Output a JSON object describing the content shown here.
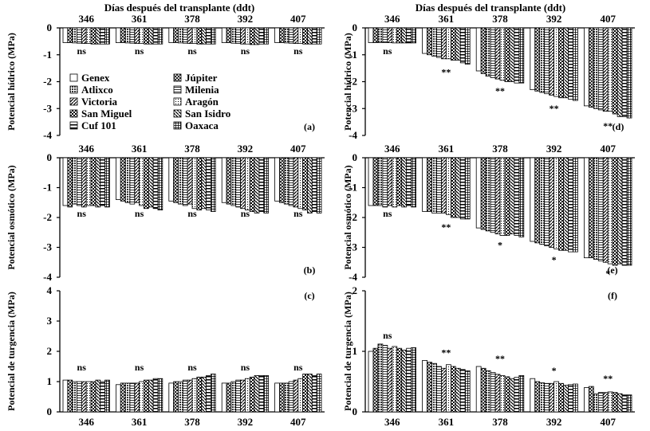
{
  "figure": {
    "header_text": "Días después del transplante (ddt)"
  },
  "chart_data": [
    {
      "panel": "(a)",
      "type": "bar",
      "ylabel": "Potencial hídrico (MPa)",
      "ylim": [
        -4,
        0
      ],
      "yticks": [
        0,
        -1,
        -2,
        -3,
        -4
      ],
      "categories": [
        "346",
        "361",
        "378",
        "392",
        "407"
      ],
      "series_values": [
        [
          -0.55,
          -0.55,
          -0.55,
          -0.55,
          -0.55
        ],
        [
          -0.55,
          -0.55,
          -0.55,
          -0.55,
          -0.55
        ],
        [
          -0.56,
          -0.56,
          -0.56,
          -0.57,
          -0.56
        ],
        [
          -0.57,
          -0.57,
          -0.57,
          -0.58,
          -0.57
        ],
        [
          -0.58,
          -0.58,
          -0.58,
          -0.6,
          -0.58
        ],
        [
          -0.58,
          -0.58,
          -0.58,
          -0.6,
          -0.58
        ],
        [
          -0.6,
          -0.6,
          -0.6,
          -0.62,
          -0.6
        ],
        [
          -0.6,
          -0.6,
          -0.6,
          -0.62,
          -0.6
        ],
        [
          -0.6,
          -0.6,
          -0.6,
          -0.6,
          -0.6
        ],
        [
          -0.6,
          -0.6,
          -0.6,
          -0.6,
          -0.6
        ]
      ],
      "significance": [
        "ns",
        "ns",
        "ns",
        "ns",
        "ns"
      ]
    },
    {
      "panel": "(d)",
      "type": "bar",
      "ylabel": "Potencial hídrico (MPa)",
      "ylim": [
        -4,
        0
      ],
      "yticks": [
        0,
        -1,
        -2,
        -3,
        -4
      ],
      "categories": [
        "346",
        "361",
        "378",
        "392",
        "407"
      ],
      "series_values": [
        [
          -0.55,
          -0.95,
          -1.6,
          -2.3,
          -2.9
        ],
        [
          -0.55,
          -1.0,
          -1.7,
          -2.35,
          -2.95
        ],
        [
          -0.55,
          -1.05,
          -1.8,
          -2.4,
          -3.0
        ],
        [
          -0.55,
          -1.1,
          -1.85,
          -2.45,
          -3.05
        ],
        [
          -0.55,
          -1.15,
          -1.9,
          -2.5,
          -3.1
        ],
        [
          -0.56,
          -1.15,
          -1.95,
          -2.55,
          -3.1
        ],
        [
          -0.56,
          -1.2,
          -2.0,
          -2.6,
          -3.2
        ],
        [
          -0.56,
          -1.2,
          -2.0,
          -2.6,
          -3.3
        ],
        [
          -0.56,
          -1.3,
          -2.05,
          -2.65,
          -3.3
        ],
        [
          -0.56,
          -1.35,
          -2.05,
          -2.7,
          -3.35
        ]
      ],
      "significance": [
        "ns",
        "**",
        "**",
        "**",
        "**"
      ]
    },
    {
      "panel": "(b)",
      "type": "bar",
      "ylabel": "Potencial osmótico (MPa)",
      "ylim": [
        -4,
        0
      ],
      "yticks": [
        0,
        -1,
        -2,
        -3,
        -4
      ],
      "categories": [
        "346",
        "361",
        "378",
        "392",
        "407"
      ],
      "series_values": [
        [
          -1.6,
          -1.4,
          -1.45,
          -1.5,
          -1.45
        ],
        [
          -1.65,
          -1.45,
          -1.5,
          -1.55,
          -1.5
        ],
        [
          -1.55,
          -1.5,
          -1.55,
          -1.6,
          -1.55
        ],
        [
          -1.6,
          -1.55,
          -1.6,
          -1.65,
          -1.6
        ],
        [
          -1.65,
          -1.5,
          -1.55,
          -1.7,
          -1.65
        ],
        [
          -1.6,
          -1.6,
          -1.7,
          -1.75,
          -1.7
        ],
        [
          -1.6,
          -1.7,
          -1.75,
          -1.8,
          -1.75
        ],
        [
          -1.65,
          -1.65,
          -1.7,
          -1.85,
          -1.85
        ],
        [
          -1.6,
          -1.7,
          -1.75,
          -1.8,
          -1.8
        ],
        [
          -1.65,
          -1.75,
          -1.8,
          -1.85,
          -1.85
        ]
      ],
      "significance": [
        "ns",
        "ns",
        "ns",
        "ns",
        "ns"
      ]
    },
    {
      "panel": "(e)",
      "type": "bar",
      "ylabel": "Potencial osmótico (MPa)",
      "ylim": [
        -4,
        0
      ],
      "yticks": [
        0,
        -1,
        -2,
        -3,
        -4
      ],
      "categories": [
        "346",
        "361",
        "378",
        "392",
        "407"
      ],
      "series_values": [
        [
          -1.6,
          -1.8,
          -2.35,
          -2.8,
          -3.35
        ],
        [
          -1.6,
          -1.8,
          -2.4,
          -2.85,
          -3.35
        ],
        [
          -1.6,
          -1.85,
          -2.45,
          -2.9,
          -3.4
        ],
        [
          -1.65,
          -1.85,
          -2.5,
          -2.95,
          -3.45
        ],
        [
          -1.6,
          -1.85,
          -2.55,
          -3.0,
          -3.5
        ],
        [
          -1.65,
          -1.9,
          -2.6,
          -3.05,
          -3.55
        ],
        [
          -1.6,
          -2.0,
          -2.6,
          -3.1,
          -3.6
        ],
        [
          -1.65,
          -2.0,
          -2.55,
          -3.1,
          -3.55
        ],
        [
          -1.6,
          -2.05,
          -2.6,
          -3.15,
          -3.6
        ],
        [
          -1.65,
          -2.05,
          -2.65,
          -3.15,
          -3.6
        ]
      ],
      "significance": [
        "ns",
        "**",
        "*",
        "*",
        "*"
      ]
    },
    {
      "panel": "(c)",
      "type": "bar",
      "ylabel": "Potencial de turgencia (MPa)",
      "ylim": [
        0,
        4
      ],
      "yticks": [
        0,
        1,
        2,
        3,
        4
      ],
      "categories": [
        "346",
        "361",
        "378",
        "392",
        "407"
      ],
      "series_values": [
        [
          1.05,
          0.9,
          0.95,
          0.95,
          0.95
        ],
        [
          1.05,
          0.95,
          1.0,
          0.95,
          0.95
        ],
        [
          1.0,
          0.95,
          1.0,
          1.0,
          0.95
        ],
        [
          1.0,
          0.95,
          1.05,
          1.05,
          1.0
        ],
        [
          1.0,
          0.95,
          1.05,
          1.05,
          1.05
        ],
        [
          1.0,
          1.0,
          1.1,
          1.1,
          1.1
        ],
        [
          1.0,
          1.05,
          1.15,
          1.15,
          1.25
        ],
        [
          1.05,
          1.05,
          1.15,
          1.2,
          1.25
        ],
        [
          1.0,
          1.1,
          1.2,
          1.2,
          1.2
        ],
        [
          1.05,
          1.1,
          1.25,
          1.2,
          1.25
        ]
      ],
      "significance": [
        "ns",
        "ns",
        "ns",
        "ns",
        "ns"
      ]
    },
    {
      "panel": "(f)",
      "type": "bar",
      "ylabel": "Potencial de turgencia (MPa)",
      "ylim": [
        0,
        2
      ],
      "yticks": [
        0,
        1,
        2
      ],
      "categories": [
        "346",
        "361",
        "378",
        "392",
        "407"
      ],
      "series_values": [
        [
          1.0,
          0.85,
          0.75,
          0.55,
          0.4
        ],
        [
          1.05,
          0.82,
          0.72,
          0.5,
          0.42
        ],
        [
          1.12,
          0.8,
          0.68,
          0.48,
          0.3
        ],
        [
          1.1,
          0.75,
          0.65,
          0.47,
          0.32
        ],
        [
          1.05,
          0.72,
          0.62,
          0.47,
          0.32
        ],
        [
          1.08,
          0.78,
          0.6,
          0.5,
          0.33
        ],
        [
          1.05,
          0.75,
          0.58,
          0.47,
          0.32
        ],
        [
          1.02,
          0.72,
          0.55,
          0.44,
          0.3
        ],
        [
          1.05,
          0.7,
          0.57,
          0.45,
          0.28
        ],
        [
          1.06,
          0.68,
          0.6,
          0.46,
          0.28
        ]
      ],
      "significance": [
        "ns",
        "**",
        "**",
        "*",
        "**"
      ]
    }
  ],
  "legend": [
    {
      "name": "Genex",
      "pattern": "open"
    },
    {
      "name": "Júpiter",
      "pattern": "diagcross"
    },
    {
      "name": "Atlixco",
      "pattern": "dense"
    },
    {
      "name": "Milenia",
      "pattern": "hlines"
    },
    {
      "name": "Victoria",
      "pattern": "bdiag"
    },
    {
      "name": "Aragón",
      "pattern": "dots"
    },
    {
      "name": "San Miguel",
      "pattern": "checker"
    },
    {
      "name": "San Isidro",
      "pattern": "fdiag"
    },
    {
      "name": "Cuf 101",
      "pattern": "hbars"
    },
    {
      "name": "Oaxaca",
      "pattern": "crosshatch"
    }
  ]
}
